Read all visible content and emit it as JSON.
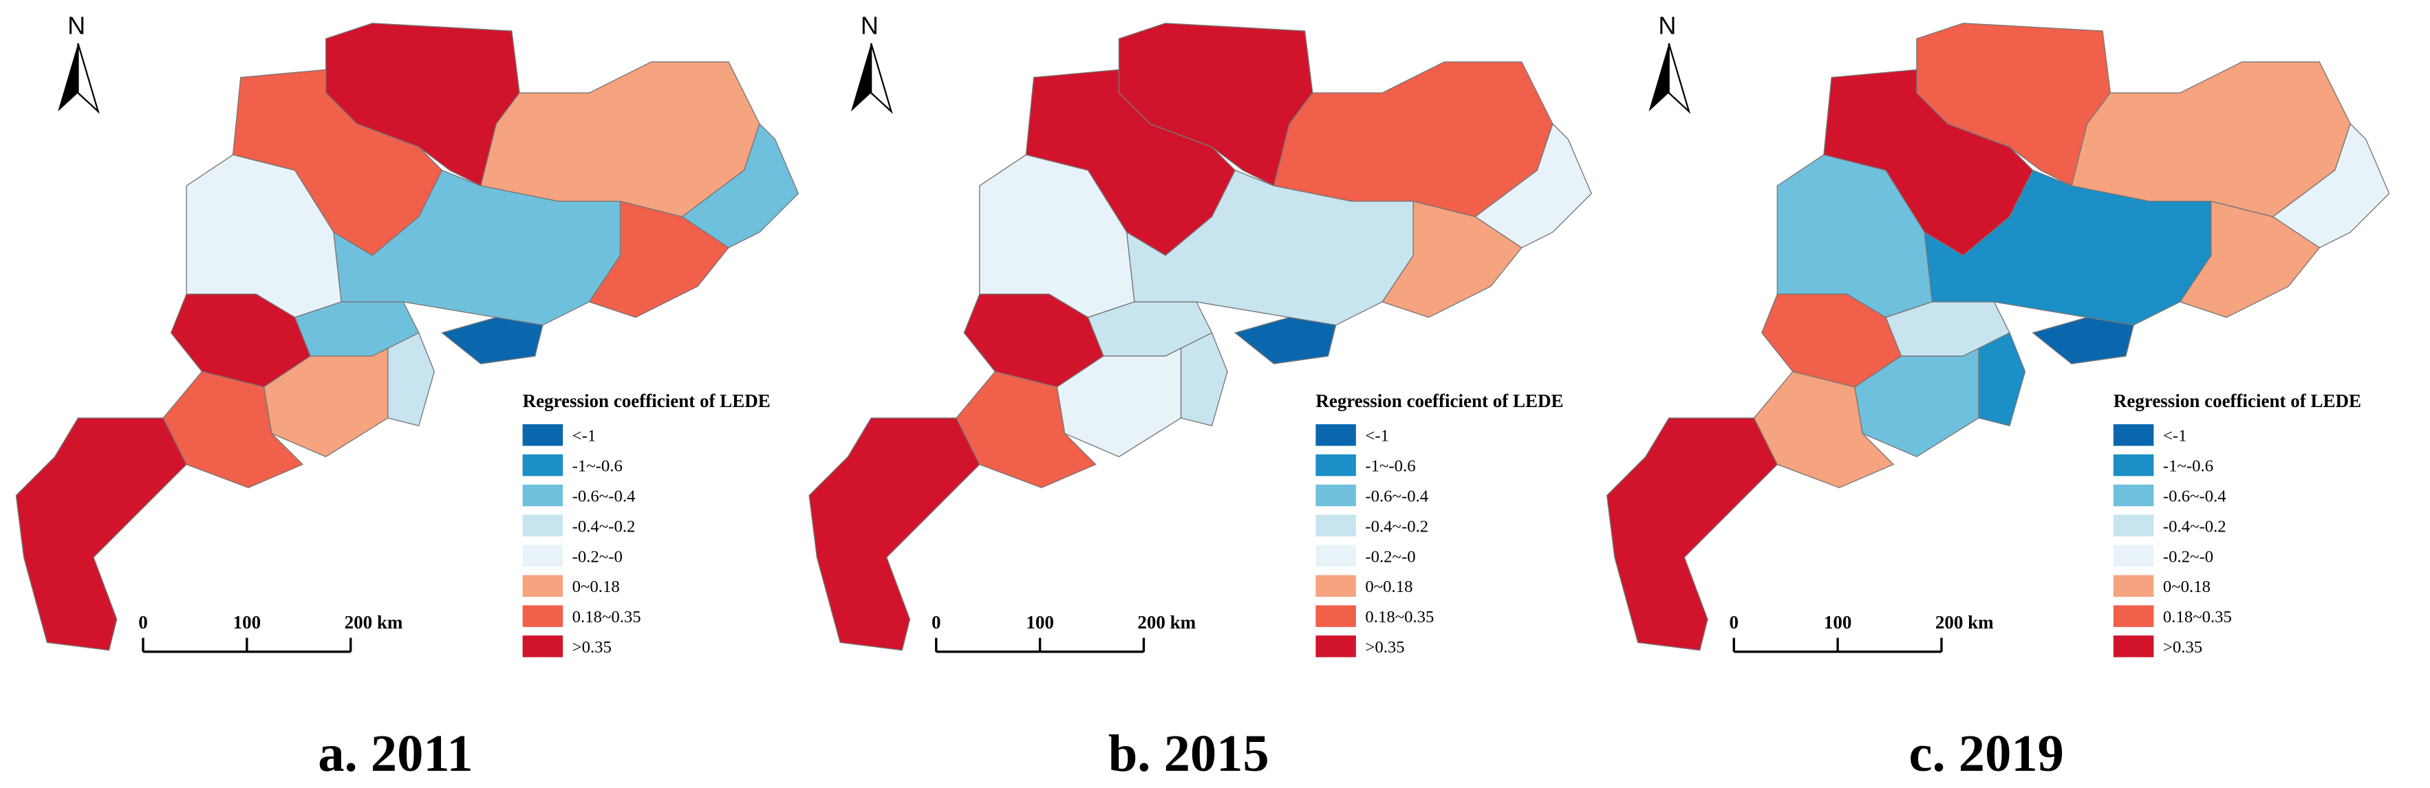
{
  "panels": [
    {
      "caption": "a. 2011",
      "north": "N",
      "legend_title": "Regression coefficient of  LEDE",
      "scale_labels": [
        "0",
        "100",
        "200 km"
      ],
      "region_classes": [
        7,
        6,
        5,
        2,
        6,
        4,
        2,
        2,
        0,
        3,
        7,
        5,
        6,
        7
      ]
    },
    {
      "caption": "b. 2015",
      "north": "N",
      "legend_title": "Regression coefficient of  LEDE",
      "scale_labels": [
        "0",
        "100",
        "200 km"
      ],
      "region_classes": [
        7,
        7,
        6,
        4,
        5,
        4,
        3,
        3,
        0,
        3,
        7,
        4,
        6,
        7
      ]
    },
    {
      "caption": "c. 2019",
      "north": "N",
      "legend_title": "Regression coefficient of  LEDE",
      "scale_labels": [
        "0",
        "100",
        "200 km"
      ],
      "region_classes": [
        6,
        7,
        5,
        4,
        5,
        2,
        1,
        3,
        0,
        1,
        6,
        2,
        5,
        7
      ]
    }
  ],
  "legend": {
    "labels": [
      "<-1",
      "-1~-0.6",
      "-0.6~-0.4",
      "-0.4~-0.2",
      "-0.2~-0",
      "0~0.18",
      "0.18~0.35",
      ">0.35"
    ],
    "colors": [
      "#0b67ad",
      "#1b8fc6",
      "#6fc0dd",
      "#c7e4ef",
      "#e8f3f9",
      "#f6a37f",
      "#f0604b",
      "#d1142c"
    ]
  }
}
